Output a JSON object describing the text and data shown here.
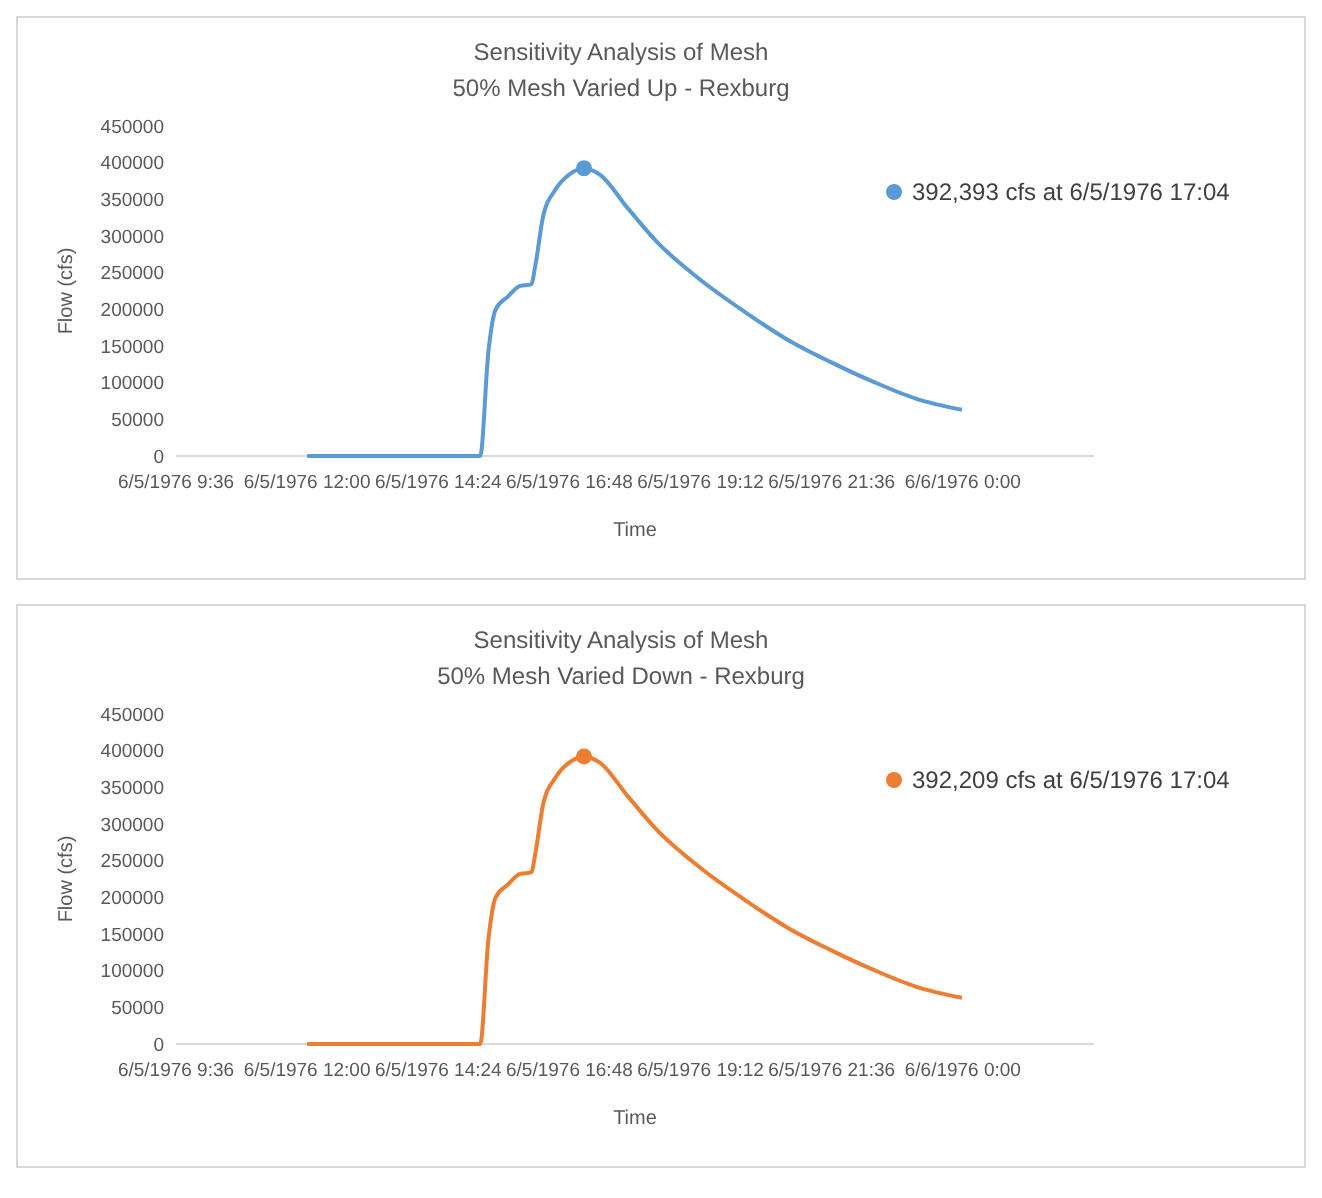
{
  "chart_data": [
    {
      "type": "line",
      "title": "Sensitivity Analysis of Mesh",
      "subtitle": "50% Mesh Varied Up - Rexburg",
      "xlabel": "Time",
      "ylabel": "Flow (cfs)",
      "legend": "top right",
      "xlim": [
        "1976-06-05T09:36",
        "1976-06-06T02:24"
      ],
      "xticks": [
        {
          "value": "1976-06-05T09:36",
          "label": "6/5/1976 9:36"
        },
        {
          "value": "1976-06-05T12:00",
          "label": "6/5/1976 12:00"
        },
        {
          "value": "1976-06-05T14:24",
          "label": "6/5/1976 14:24"
        },
        {
          "value": "1976-06-05T16:48",
          "label": "6/5/1976 16:48"
        },
        {
          "value": "1976-06-05T19:12",
          "label": "6/5/1976 19:12"
        },
        {
          "value": "1976-06-05T21:36",
          "label": "6/5/1976 21:36"
        },
        {
          "value": "1976-06-06T00:00",
          "label": "6/6/1976 0:00"
        }
      ],
      "ylim": [
        0,
        450000
      ],
      "yticks": [
        0,
        50000,
        100000,
        150000,
        200000,
        250000,
        300000,
        350000,
        400000,
        450000
      ],
      "series": [
        {
          "color": "#5b9bd5",
          "marker": "none",
          "x": [
            "1976-06-05T12:00",
            "1976-06-05T15:10",
            "1976-06-05T15:19",
            "1976-06-05T15:27",
            "1976-06-05T15:40",
            "1976-06-05T15:54",
            "1976-06-05T16:06",
            "1976-06-05T16:11",
            "1976-06-05T16:19",
            "1976-06-05T16:33",
            "1976-06-05T16:48",
            "1976-06-05T17:04",
            "1976-06-05T17:21",
            "1976-06-05T17:52",
            "1976-06-05T18:24",
            "1976-06-05T19:12",
            "1976-06-05T20:00",
            "1976-06-05T20:47",
            "1976-06-05T21:35",
            "1976-06-05T22:22",
            "1976-06-05T23:09",
            "1976-06-05T23:59"
          ],
          "values": [
            0,
            0,
            142000,
            200000,
            217000,
            232000,
            234000,
            263000,
            326000,
            364000,
            384000,
            392393,
            384000,
            338000,
            292000,
            240000,
            197000,
            159000,
            128000,
            101000,
            78000,
            63000
          ]
        },
        {
          "type": "scatter",
          "name": "392,393 cfs at 6/5/1976 17:04",
          "color": "#5b9bd5",
          "marker": "circle",
          "x": [
            "1976-06-05T17:04"
          ],
          "values": [
            392393
          ]
        }
      ]
    },
    {
      "type": "line",
      "title": "Sensitivity Analysis of Mesh",
      "subtitle": "50% Mesh Varied Down - Rexburg",
      "xlabel": "Time",
      "ylabel": "Flow (cfs)",
      "legend": "top right",
      "xlim": [
        "1976-06-05T09:36",
        "1976-06-06T02:24"
      ],
      "xticks": [
        {
          "value": "1976-06-05T09:36",
          "label": "6/5/1976 9:36"
        },
        {
          "value": "1976-06-05T12:00",
          "label": "6/5/1976 12:00"
        },
        {
          "value": "1976-06-05T14:24",
          "label": "6/5/1976 14:24"
        },
        {
          "value": "1976-06-05T16:48",
          "label": "6/5/1976 16:48"
        },
        {
          "value": "1976-06-05T19:12",
          "label": "6/5/1976 19:12"
        },
        {
          "value": "1976-06-05T21:36",
          "label": "6/5/1976 21:36"
        },
        {
          "value": "1976-06-06T00:00",
          "label": "6/6/1976 0:00"
        }
      ],
      "ylim": [
        0,
        450000
      ],
      "yticks": [
        0,
        50000,
        100000,
        150000,
        200000,
        250000,
        300000,
        350000,
        400000,
        450000
      ],
      "series": [
        {
          "color": "#ed7d31",
          "marker": "none",
          "x": [
            "1976-06-05T12:00",
            "1976-06-05T15:10",
            "1976-06-05T15:19",
            "1976-06-05T15:27",
            "1976-06-05T15:40",
            "1976-06-05T15:54",
            "1976-06-05T16:06",
            "1976-06-05T16:11",
            "1976-06-05T16:19",
            "1976-06-05T16:33",
            "1976-06-05T16:48",
            "1976-06-05T17:04",
            "1976-06-05T17:21",
            "1976-06-05T17:52",
            "1976-06-05T18:24",
            "1976-06-05T19:12",
            "1976-06-05T20:00",
            "1976-06-05T20:47",
            "1976-06-05T21:35",
            "1976-06-05T22:22",
            "1976-06-05T23:09",
            "1976-06-05T23:59"
          ],
          "values": [
            0,
            0,
            142000,
            200000,
            217000,
            232000,
            234000,
            263000,
            326000,
            364000,
            384000,
            392209,
            384000,
            338000,
            292000,
            240000,
            197000,
            159000,
            128000,
            101000,
            78000,
            63000
          ]
        },
        {
          "type": "scatter",
          "name": "392,209 cfs at 6/5/1976 17:04",
          "color": "#ed7d31",
          "marker": "circle",
          "x": [
            "1976-06-05T17:04"
          ],
          "values": [
            392209
          ]
        }
      ]
    }
  ]
}
